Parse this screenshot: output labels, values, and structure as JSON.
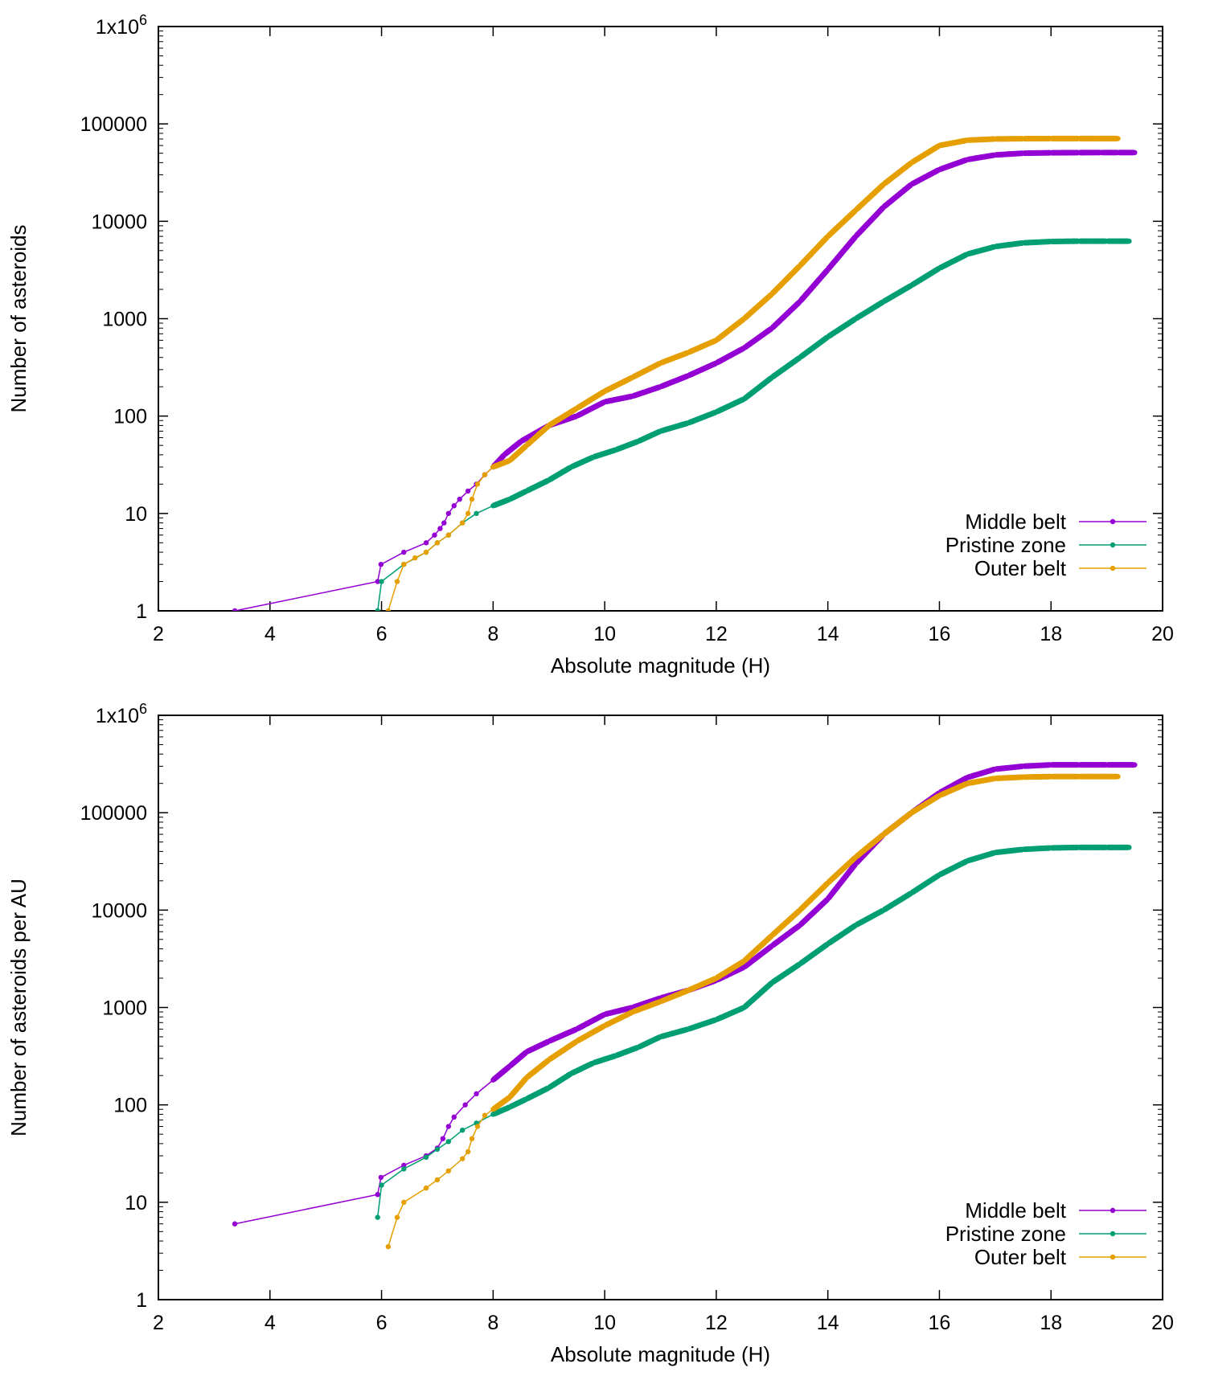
{
  "colors": {
    "middle": "#9400d3",
    "pristine": "#009e73",
    "outer": "#e69f00"
  },
  "chart_data": [
    {
      "type": "line",
      "xlabel": "Absolute magnitude (H)",
      "ylabel": "Number of asteroids",
      "xlim": [
        2,
        20
      ],
      "ylim": [
        1,
        1000000
      ],
      "yscale": "log",
      "xticks": [
        "2",
        "4",
        "6",
        "8",
        "10",
        "12",
        "14",
        "16",
        "18",
        "20"
      ],
      "yticks": [
        "1",
        "10",
        "100",
        "1000",
        "10000",
        "100000",
        "1x10"
      ],
      "ytick_top_exponent": "6",
      "grid": false,
      "legend_position": "bottom-right",
      "series": [
        {
          "name": "Middle belt",
          "color_key": "middle",
          "x": [
            3.37,
            5.93,
            5.99,
            6.4,
            6.8,
            6.95,
            7.05,
            7.12,
            7.2,
            7.3,
            7.4,
            7.55,
            7.7,
            7.85,
            8.0,
            8.2,
            8.5,
            9.0,
            9.5,
            10.0,
            10.5,
            11.0,
            11.5,
            12.0,
            12.5,
            13.0,
            13.5,
            14.0,
            14.5,
            15.0,
            15.5,
            16.0,
            16.5,
            17.0,
            17.5,
            18.0,
            18.5,
            18.9,
            19.2,
            19.5
          ],
          "y": [
            1,
            2,
            3,
            4,
            5,
            6,
            7,
            8,
            10,
            12,
            14,
            17,
            20,
            25,
            30,
            40,
            55,
            80,
            100,
            140,
            160,
            200,
            260,
            350,
            500,
            800,
            1500,
            3200,
            7000,
            14000,
            24000,
            34000,
            43000,
            48000,
            50000,
            50500,
            50700,
            50800,
            50800,
            50800
          ]
        },
        {
          "name": "Pristine zone",
          "color_key": "pristine",
          "x": [
            5.93,
            6.0,
            6.4,
            6.8,
            7.0,
            7.2,
            7.45,
            7.7,
            8.0,
            8.3,
            8.6,
            9.0,
            9.4,
            9.8,
            10.2,
            10.6,
            11.0,
            11.5,
            12.0,
            12.5,
            13.0,
            13.5,
            14.0,
            14.5,
            15.0,
            15.5,
            16.0,
            16.5,
            17.0,
            17.5,
            18.0,
            18.5,
            19.0,
            19.4
          ],
          "y": [
            1,
            2,
            3,
            4,
            5,
            6,
            8,
            10,
            12,
            14,
            17,
            22,
            30,
            38,
            45,
            55,
            70,
            85,
            110,
            150,
            250,
            400,
            650,
            1000,
            1500,
            2200,
            3300,
            4600,
            5500,
            6000,
            6200,
            6250,
            6250,
            6250
          ]
        },
        {
          "name": "Outer belt",
          "color_key": "outer",
          "x": [
            6.12,
            6.28,
            6.4,
            6.6,
            6.8,
            7.0,
            7.2,
            7.45,
            7.55,
            7.62,
            7.72,
            7.85,
            8.0,
            8.3,
            8.6,
            9.0,
            9.5,
            10.0,
            10.5,
            11.0,
            11.5,
            12.0,
            12.5,
            13.0,
            13.5,
            14.0,
            14.5,
            15.0,
            15.5,
            16.0,
            16.5,
            17.0,
            17.5,
            18.0,
            18.5,
            19.2
          ],
          "y": [
            1,
            2,
            3,
            3.5,
            4,
            5,
            6,
            8,
            10,
            14,
            20,
            25,
            30,
            35,
            50,
            80,
            120,
            180,
            250,
            350,
            450,
            600,
            1000,
            1800,
            3500,
            7000,
            13000,
            24000,
            40000,
            60000,
            68000,
            70000,
            70500,
            70700,
            70700,
            70700
          ]
        }
      ]
    },
    {
      "type": "line",
      "xlabel": "Absolute magnitude (H)",
      "ylabel": "Number of asteroids per AU",
      "xlim": [
        2,
        20
      ],
      "ylim": [
        1,
        1000000
      ],
      "yscale": "log",
      "xticks": [
        "2",
        "4",
        "6",
        "8",
        "10",
        "12",
        "14",
        "16",
        "18",
        "20"
      ],
      "yticks": [
        "1",
        "10",
        "100",
        "1000",
        "10000",
        "100000",
        "1x10"
      ],
      "ytick_top_exponent": "6",
      "grid": false,
      "legend_position": "bottom-right",
      "series": [
        {
          "name": "Middle belt",
          "color_key": "middle",
          "x": [
            3.37,
            5.93,
            5.99,
            6.4,
            6.8,
            7.0,
            7.1,
            7.2,
            7.3,
            7.5,
            7.7,
            8.0,
            8.3,
            8.6,
            9.0,
            9.5,
            10.0,
            10.5,
            11.0,
            11.5,
            12.0,
            12.5,
            13.0,
            13.5,
            14.0,
            14.5,
            15.0,
            15.5,
            16.0,
            16.5,
            17.0,
            17.5,
            18.0,
            18.5,
            19.0,
            19.5
          ],
          "y": [
            6,
            12,
            18,
            24,
            30,
            36,
            45,
            60,
            75,
            100,
            130,
            180,
            250,
            350,
            450,
            600,
            850,
            1000,
            1250,
            1500,
            1900,
            2600,
            4300,
            7000,
            13000,
            30000,
            60000,
            100000,
            160000,
            230000,
            280000,
            300000,
            310000,
            310000,
            310000,
            310000
          ]
        },
        {
          "name": "Pristine zone",
          "color_key": "pristine",
          "x": [
            5.93,
            6.0,
            6.4,
            6.8,
            7.0,
            7.2,
            7.45,
            7.7,
            8.0,
            8.3,
            8.6,
            9.0,
            9.4,
            9.8,
            10.2,
            10.6,
            11.0,
            11.5,
            12.0,
            12.5,
            13.0,
            13.5,
            14.0,
            14.5,
            15.0,
            15.5,
            16.0,
            16.5,
            17.0,
            17.5,
            18.0,
            18.5,
            19.0,
            19.4
          ],
          "y": [
            7,
            15,
            22,
            29,
            35,
            42,
            55,
            65,
            80,
            95,
            115,
            150,
            210,
            270,
            320,
            390,
            500,
            600,
            750,
            1000,
            1800,
            2800,
            4500,
            7000,
            10000,
            15000,
            23000,
            32000,
            39000,
            42000,
            43500,
            44000,
            44000,
            44000
          ]
        },
        {
          "name": "Outer belt",
          "color_key": "outer",
          "x": [
            6.12,
            6.28,
            6.4,
            6.8,
            7.0,
            7.2,
            7.45,
            7.55,
            7.62,
            7.72,
            7.85,
            8.0,
            8.3,
            8.6,
            9.0,
            9.5,
            10.0,
            10.5,
            11.0,
            11.5,
            12.0,
            12.5,
            13.0,
            13.5,
            14.0,
            14.5,
            15.0,
            15.5,
            16.0,
            16.5,
            17.0,
            17.5,
            18.0,
            18.5,
            19.2
          ],
          "y": [
            3.5,
            7,
            10,
            14,
            17,
            21,
            28,
            33,
            45,
            60,
            78,
            90,
            120,
            190,
            290,
            450,
            650,
            900,
            1150,
            1500,
            2000,
            3000,
            5500,
            10000,
            19000,
            35000,
            60000,
            100000,
            150000,
            200000,
            225000,
            232000,
            235000,
            235000,
            235000
          ]
        }
      ]
    }
  ]
}
